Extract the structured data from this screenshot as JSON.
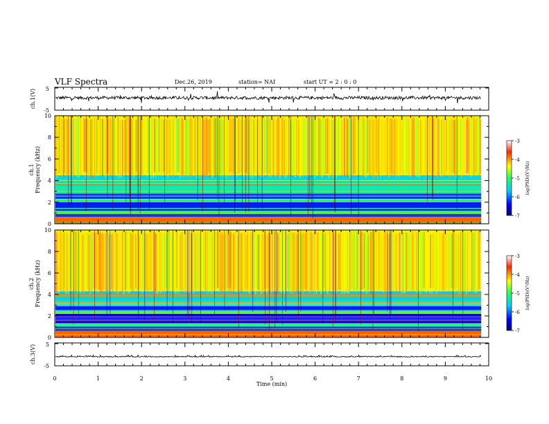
{
  "header": {
    "title": "VLF Spectra",
    "date": "Dec.26, 2019",
    "station": "station= NAI",
    "start": "start  UT =   2 : 0  : 0"
  },
  "chart_data": [
    {
      "type": "line",
      "panel": "ch1-waveform",
      "ylabel": "ch.1(V)",
      "ylim": [
        -5,
        5
      ],
      "yticks": [
        "5",
        "-5"
      ],
      "xlim": [
        0,
        10
      ],
      "trace_level_approx": 0.4,
      "note_values": "continuous noisy waveform centered slightly above 0 V"
    },
    {
      "type": "heatmap",
      "panel": "ch1-spectrogram",
      "ylabel": "ch.1\nFrequency (kHz)",
      "ylabel_line1": "ch.1",
      "ylabel_line2": "Frequency (kHz)",
      "ylim": [
        0,
        10
      ],
      "yticks": [
        "0",
        "2",
        "4",
        "6",
        "8",
        "10"
      ],
      "xlim": [
        0,
        10
      ],
      "x_data_end": 9.83,
      "colorbar": {
        "label": "log(PSD)(V²/Hz)",
        "range": [
          -7,
          -3
        ],
        "ticks": [
          "-3",
          "-4",
          "-5",
          "-6",
          "-7"
        ]
      },
      "bands_khz": [
        {
          "from": 0,
          "to": 0.6,
          "level": -3.8
        },
        {
          "from": 0.6,
          "to": 0.9,
          "level": -6.2
        },
        {
          "from": 0.9,
          "to": 1.2,
          "level": -5.0
        },
        {
          "from": 1.2,
          "to": 2.0,
          "level": -6.3
        },
        {
          "from": 2.0,
          "to": 2.3,
          "level": -5.1
        },
        {
          "from": 2.3,
          "to": 2.8,
          "level": -6.2
        },
        {
          "from": 2.8,
          "to": 3.3,
          "level": -5.3
        },
        {
          "from": 3.3,
          "to": 4.5,
          "level": -5.6
        },
        {
          "from": 4.5,
          "to": 10,
          "level": -4.3
        }
      ]
    },
    {
      "type": "heatmap",
      "panel": "ch2-spectrogram",
      "ylabel_line1": "ch.2",
      "ylabel_line2": "Frequency (kHz)",
      "ylim": [
        0,
        10
      ],
      "yticks": [
        "0",
        "2",
        "4",
        "6",
        "8",
        "10"
      ],
      "xlim": [
        0,
        10
      ],
      "x_data_end": 9.83,
      "colorbar": {
        "label": "log(PSD)(V²/Hz)",
        "range": [
          -7,
          -3
        ],
        "ticks": [
          "-3",
          "-4",
          "-5",
          "-6",
          "-7"
        ]
      },
      "bands_khz": [
        {
          "from": 0,
          "to": 0.6,
          "level": -3.8
        },
        {
          "from": 0.6,
          "to": 1.0,
          "level": -6.2
        },
        {
          "from": 1.0,
          "to": 1.3,
          "level": -5.1
        },
        {
          "from": 1.3,
          "to": 2.2,
          "level": -6.4
        },
        {
          "from": 2.2,
          "to": 2.5,
          "level": -5.2
        },
        {
          "from": 2.5,
          "to": 2.9,
          "level": -6.3
        },
        {
          "from": 2.9,
          "to": 3.4,
          "level": -5.4
        },
        {
          "from": 3.4,
          "to": 4.3,
          "level": -5.7
        },
        {
          "from": 4.3,
          "to": 10,
          "level": -4.3
        }
      ]
    },
    {
      "type": "line",
      "panel": "ch3-waveform",
      "ylabel": "ch.3(V)",
      "ylim": [
        -5,
        5
      ],
      "yticks": [
        "5",
        "-5"
      ],
      "xlim": [
        0,
        10
      ],
      "trace_level_approx": -1.0,
      "note_values": "flat trace near -1 V with small periodic spikes"
    }
  ],
  "xaxis": {
    "label": "Time  (min)",
    "ticks": [
      "0",
      "1",
      "2",
      "3",
      "4",
      "5",
      "6",
      "7",
      "8",
      "9",
      "10"
    ]
  }
}
